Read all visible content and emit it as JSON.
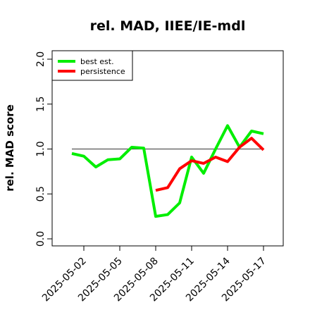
{
  "chart_data": {
    "type": "line",
    "title": "rel. MAD, IIEE/IE-mdl",
    "xlabel": "",
    "ylabel": "rel. MAD score",
    "x": [
      "2025-05-01",
      "2025-05-02",
      "2025-05-03",
      "2025-05-04",
      "2025-05-05",
      "2025-05-06",
      "2025-05-07",
      "2025-05-08",
      "2025-05-09",
      "2025-05-10",
      "2025-05-11",
      "2025-05-12",
      "2025-05-13",
      "2025-05-14",
      "2025-05-15",
      "2025-05-16",
      "2025-05-17"
    ],
    "xticks": [
      "2025-05-02",
      "2025-05-05",
      "2025-05-08",
      "2025-05-11",
      "2025-05-14",
      "2025-05-17"
    ],
    "ylim": [
      -0.05,
      2.1
    ],
    "yticks": [
      0.0,
      0.5,
      1.0,
      1.5,
      2.0
    ],
    "yticklabels": [
      "0.0",
      "0.5",
      "1.0",
      "1.5",
      "2.0"
    ],
    "reference_line": 1.0,
    "legend_position": "top-left",
    "series": [
      {
        "name": "best est.",
        "color": "#00ee00",
        "values": [
          0.95,
          0.92,
          0.8,
          0.88,
          0.89,
          1.02,
          1.01,
          0.25,
          0.27,
          0.4,
          0.91,
          0.73,
          1.0,
          1.26,
          1.02,
          1.2,
          1.17
        ]
      },
      {
        "name": "persistence",
        "color": "#ff0000",
        "values": [
          null,
          null,
          null,
          null,
          null,
          null,
          null,
          0.54,
          0.57,
          0.78,
          0.87,
          0.84,
          0.91,
          0.86,
          1.02,
          1.12,
          0.99
        ]
      }
    ]
  }
}
